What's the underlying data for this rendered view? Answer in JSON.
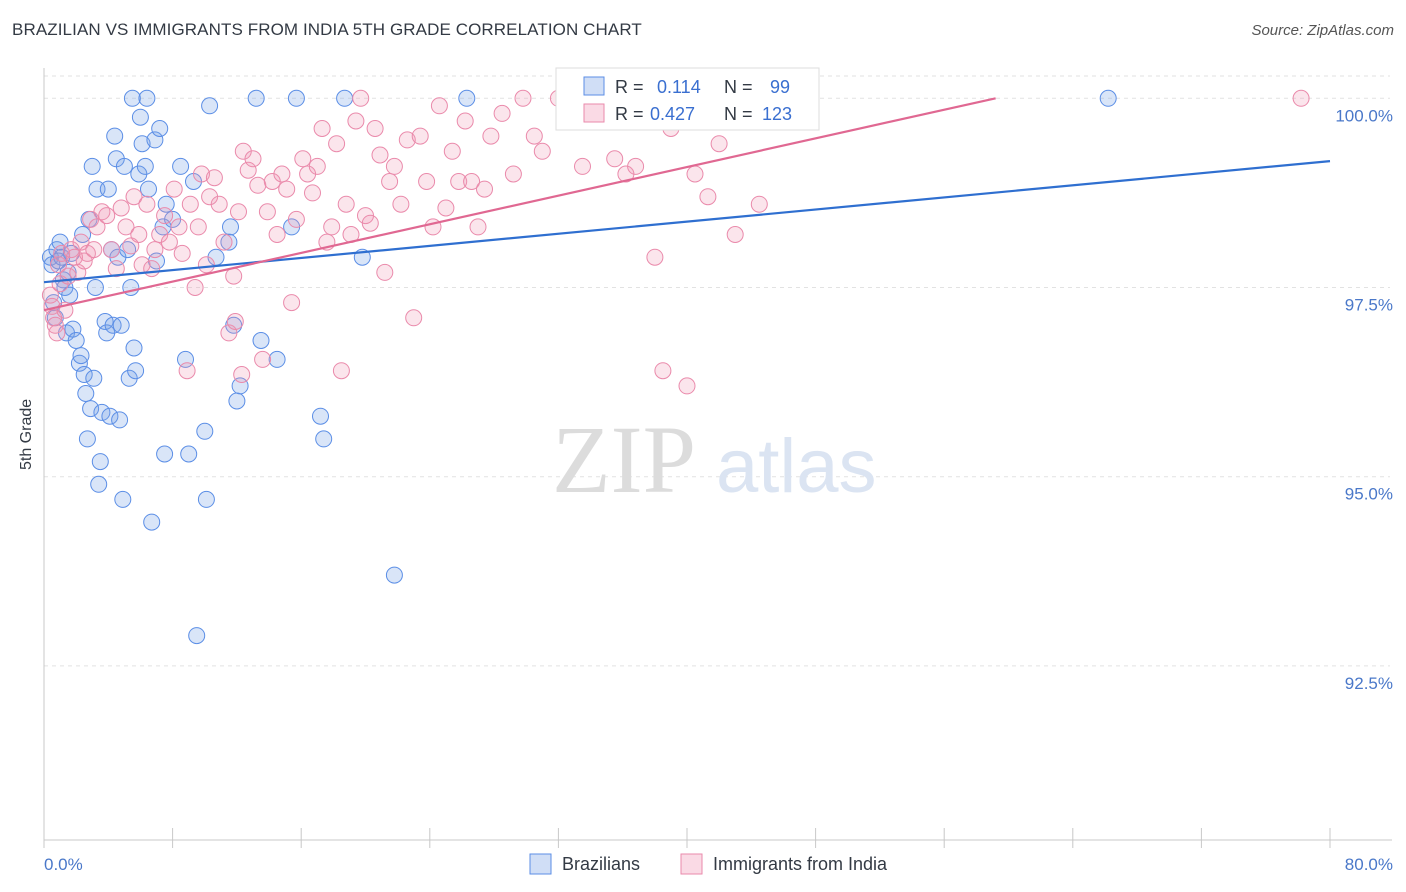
{
  "header": {
    "title": "BRAZILIAN VS IMMIGRANTS FROM INDIA 5TH GRADE CORRELATION CHART",
    "source": "Source: ZipAtlas.com"
  },
  "watermark": {
    "zip": "ZIP",
    "atlas": "atlas"
  },
  "colors": {
    "blue": "#5b8ee6",
    "blue_line": "#2f6fd0",
    "blue_fill": "rgba(120,160,230,0.28)",
    "pink": "#ea8aab",
    "pink_line": "#e06892",
    "pink_fill": "rgba(240,150,180,0.25)",
    "tick_text": "#4a78c9",
    "grid": "#e2e2e2"
  },
  "legend": {
    "rows": [
      {
        "r_label": "R =",
        "r_value": "0.114",
        "n_label": "N =",
        "n_value": "99",
        "series": "blue"
      },
      {
        "r_label": "R =",
        "r_value": "0.427",
        "n_label": "N =",
        "n_value": "123",
        "series": "pink"
      }
    ]
  },
  "bottom_legend": {
    "items": [
      "Brazilians",
      "Immigrants from India"
    ]
  },
  "chart_data": {
    "type": "scatter",
    "title": "BRAZILIAN VS IMMIGRANTS FROM INDIA 5TH GRADE CORRELATION CHART",
    "xlabel": "",
    "ylabel": "5th Grade",
    "xlim": [
      0,
      80
    ],
    "ylim": [
      90.2,
      100.4
    ],
    "x_tick_labels": [
      {
        "value": 0,
        "label": "0.0%"
      },
      {
        "value": 80,
        "label": "80.0%"
      }
    ],
    "x_minor_ticks": [
      0,
      8,
      16,
      24,
      32,
      40,
      48,
      56,
      64,
      72,
      80
    ],
    "y_ticks": [
      {
        "value": 100,
        "label": "100.0%"
      },
      {
        "value": 97.5,
        "label": "97.5%"
      },
      {
        "value": 95,
        "label": "95.0%"
      },
      {
        "value": 92.5,
        "label": "92.5%"
      }
    ],
    "grid": true,
    "legend_position": "top-center",
    "series": [
      {
        "name": "Brazilians",
        "color": "blue",
        "R": 0.114,
        "N": 99,
        "trend": {
          "x": [
            0,
            80
          ],
          "y": [
            97.57,
            99.17
          ]
        },
        "points": [
          [
            0.4,
            97.9
          ],
          [
            0.5,
            97.8
          ],
          [
            0.6,
            97.3
          ],
          [
            0.7,
            97.1
          ],
          [
            0.8,
            98.0
          ],
          [
            0.9,
            97.85
          ],
          [
            1.0,
            98.1
          ],
          [
            1.1,
            97.9
          ],
          [
            1.2,
            97.6
          ],
          [
            1.3,
            97.5
          ],
          [
            1.4,
            96.9
          ],
          [
            1.5,
            97.7
          ],
          [
            1.6,
            97.4
          ],
          [
            1.7,
            97.95
          ],
          [
            1.8,
            96.95
          ],
          [
            2.0,
            96.8
          ],
          [
            2.2,
            96.5
          ],
          [
            2.3,
            96.6
          ],
          [
            2.4,
            98.2
          ],
          [
            2.5,
            96.35
          ],
          [
            2.6,
            96.1
          ],
          [
            2.7,
            95.5
          ],
          [
            2.8,
            98.4
          ],
          [
            2.9,
            95.9
          ],
          [
            3.0,
            99.1
          ],
          [
            3.1,
            96.3
          ],
          [
            3.2,
            97.5
          ],
          [
            3.3,
            98.8
          ],
          [
            3.4,
            94.9
          ],
          [
            3.5,
            95.2
          ],
          [
            3.6,
            95.85
          ],
          [
            3.8,
            97.05
          ],
          [
            3.9,
            96.9
          ],
          [
            4.0,
            98.8
          ],
          [
            4.1,
            95.8
          ],
          [
            4.2,
            98.0
          ],
          [
            4.3,
            97.0
          ],
          [
            4.4,
            99.5
          ],
          [
            4.5,
            99.2
          ],
          [
            4.6,
            97.9
          ],
          [
            4.7,
            95.75
          ],
          [
            4.8,
            97.0
          ],
          [
            4.9,
            94.7
          ],
          [
            5.0,
            99.1
          ],
          [
            5.2,
            98.0
          ],
          [
            5.3,
            96.3
          ],
          [
            5.4,
            97.5
          ],
          [
            5.5,
            100.0
          ],
          [
            5.6,
            96.7
          ],
          [
            5.7,
            96.4
          ],
          [
            5.9,
            99.0
          ],
          [
            6.0,
            99.75
          ],
          [
            6.1,
            99.4
          ],
          [
            6.3,
            99.1
          ],
          [
            6.4,
            100.0
          ],
          [
            6.5,
            98.8
          ],
          [
            6.7,
            94.4
          ],
          [
            6.9,
            99.45
          ],
          [
            7.0,
            97.85
          ],
          [
            7.2,
            99.6
          ],
          [
            7.4,
            98.3
          ],
          [
            7.5,
            95.3
          ],
          [
            7.6,
            98.6
          ],
          [
            8.0,
            98.4
          ],
          [
            8.5,
            99.1
          ],
          [
            8.8,
            96.55
          ],
          [
            9.0,
            95.3
          ],
          [
            9.3,
            98.9
          ],
          [
            9.5,
            92.9
          ],
          [
            10.0,
            95.6
          ],
          [
            10.1,
            94.7
          ],
          [
            10.3,
            99.9
          ],
          [
            10.7,
            97.9
          ],
          [
            11.5,
            98.1
          ],
          [
            11.6,
            98.3
          ],
          [
            11.8,
            97.0
          ],
          [
            12.0,
            96.0
          ],
          [
            12.2,
            96.2
          ],
          [
            13.2,
            100.0
          ],
          [
            13.5,
            96.8
          ],
          [
            14.5,
            96.55
          ],
          [
            15.4,
            98.3
          ],
          [
            15.7,
            100.0
          ],
          [
            17.2,
            95.8
          ],
          [
            17.4,
            95.5
          ],
          [
            18.7,
            100.0
          ],
          [
            19.8,
            97.9
          ],
          [
            21.8,
            93.7
          ],
          [
            26.3,
            100.0
          ],
          [
            66.2,
            100.0
          ]
        ]
      },
      {
        "name": "Immigrants from India",
        "color": "pink",
        "R": 0.427,
        "N": 123,
        "trend": {
          "x": [
            0,
            59.2
          ],
          "y": [
            97.2,
            100.0
          ]
        },
        "points": [
          [
            0.4,
            97.4
          ],
          [
            0.5,
            97.25
          ],
          [
            0.6,
            97.1
          ],
          [
            0.7,
            97.0
          ],
          [
            0.8,
            96.9
          ],
          [
            0.9,
            97.8
          ],
          [
            1.0,
            97.55
          ],
          [
            1.1,
            97.95
          ],
          [
            1.3,
            97.2
          ],
          [
            1.5,
            97.65
          ],
          [
            1.7,
            98.0
          ],
          [
            1.9,
            97.9
          ],
          [
            2.1,
            97.7
          ],
          [
            2.3,
            98.1
          ],
          [
            2.5,
            97.85
          ],
          [
            2.7,
            97.95
          ],
          [
            2.9,
            98.4
          ],
          [
            3.1,
            98.0
          ],
          [
            3.3,
            98.3
          ],
          [
            3.6,
            98.5
          ],
          [
            3.9,
            98.45
          ],
          [
            4.2,
            98.0
          ],
          [
            4.5,
            97.75
          ],
          [
            4.8,
            98.55
          ],
          [
            5.1,
            98.3
          ],
          [
            5.4,
            98.05
          ],
          [
            5.6,
            98.7
          ],
          [
            5.9,
            98.2
          ],
          [
            6.1,
            97.8
          ],
          [
            6.4,
            98.6
          ],
          [
            6.7,
            97.75
          ],
          [
            6.9,
            98.0
          ],
          [
            7.2,
            98.2
          ],
          [
            7.5,
            98.45
          ],
          [
            7.8,
            98.1
          ],
          [
            8.1,
            98.8
          ],
          [
            8.4,
            98.3
          ],
          [
            8.6,
            97.95
          ],
          [
            8.9,
            96.4
          ],
          [
            9.1,
            98.6
          ],
          [
            9.4,
            97.5
          ],
          [
            9.6,
            98.3
          ],
          [
            9.8,
            99.0
          ],
          [
            10.1,
            97.8
          ],
          [
            10.3,
            98.7
          ],
          [
            10.6,
            98.95
          ],
          [
            10.9,
            98.6
          ],
          [
            11.2,
            98.1
          ],
          [
            11.5,
            96.9
          ],
          [
            11.8,
            97.65
          ],
          [
            12.1,
            98.5
          ],
          [
            12.4,
            99.3
          ],
          [
            12.7,
            99.05
          ],
          [
            13.0,
            99.2
          ],
          [
            13.3,
            98.85
          ],
          [
            13.6,
            96.55
          ],
          [
            13.9,
            98.5
          ],
          [
            14.2,
            98.9
          ],
          [
            14.5,
            98.2
          ],
          [
            14.8,
            99.0
          ],
          [
            15.1,
            98.8
          ],
          [
            15.4,
            97.3
          ],
          [
            15.7,
            98.4
          ],
          [
            16.1,
            99.2
          ],
          [
            16.4,
            99.0
          ],
          [
            16.7,
            98.75
          ],
          [
            17.0,
            99.1
          ],
          [
            17.3,
            99.6
          ],
          [
            17.6,
            98.1
          ],
          [
            17.9,
            98.3
          ],
          [
            18.2,
            99.4
          ],
          [
            18.5,
            96.4
          ],
          [
            18.8,
            98.6
          ],
          [
            19.1,
            98.2
          ],
          [
            19.4,
            99.7
          ],
          [
            19.7,
            100.0
          ],
          [
            20.0,
            98.45
          ],
          [
            20.3,
            98.35
          ],
          [
            20.6,
            99.6
          ],
          [
            20.9,
            99.25
          ],
          [
            21.2,
            97.7
          ],
          [
            21.5,
            98.9
          ],
          [
            21.8,
            99.1
          ],
          [
            22.2,
            98.6
          ],
          [
            22.6,
            99.45
          ],
          [
            23.0,
            97.1
          ],
          [
            23.4,
            99.5
          ],
          [
            23.8,
            98.9
          ],
          [
            24.2,
            98.3
          ],
          [
            24.6,
            99.9
          ],
          [
            25.0,
            98.55
          ],
          [
            25.4,
            99.3
          ],
          [
            25.8,
            98.9
          ],
          [
            26.2,
            99.7
          ],
          [
            26.6,
            98.9
          ],
          [
            27.0,
            98.3
          ],
          [
            27.4,
            98.8
          ],
          [
            27.8,
            99.5
          ],
          [
            28.5,
            99.8
          ],
          [
            29.2,
            99.0
          ],
          [
            29.8,
            100.0
          ],
          [
            30.5,
            99.5
          ],
          [
            31.0,
            99.3
          ],
          [
            32.0,
            100.0
          ],
          [
            33.5,
            99.1
          ],
          [
            34.5,
            100.0
          ],
          [
            35.5,
            99.2
          ],
          [
            36.2,
            99.0
          ],
          [
            36.8,
            99.1
          ],
          [
            37.2,
            100.0
          ],
          [
            38.0,
            97.9
          ],
          [
            38.5,
            96.4
          ],
          [
            39.0,
            99.6
          ],
          [
            40.0,
            96.2
          ],
          [
            40.5,
            99.0
          ],
          [
            41.3,
            98.7
          ],
          [
            42.0,
            99.4
          ],
          [
            43.0,
            98.2
          ],
          [
            44.5,
            98.6
          ],
          [
            78.2,
            100.0
          ],
          [
            12.3,
            96.35
          ],
          [
            11.9,
            97.05
          ]
        ]
      }
    ]
  }
}
